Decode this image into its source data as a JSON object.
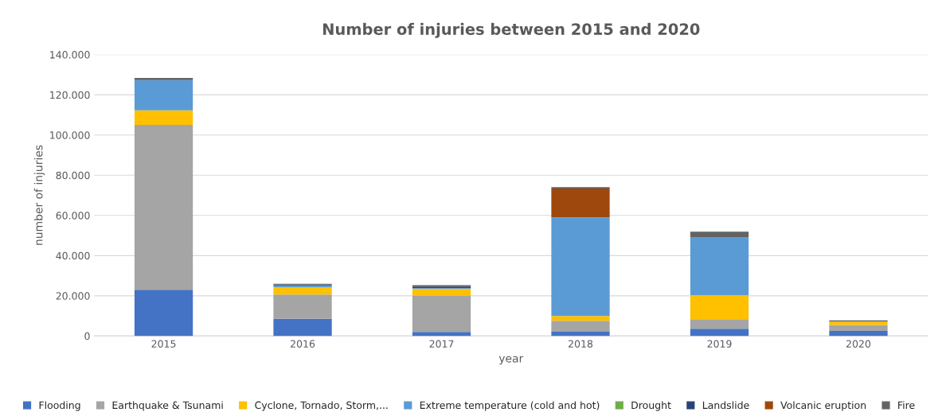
{
  "chart_data": {
    "type": "bar",
    "stacked": true,
    "title": "Number of injuries between 2015 and 2020",
    "xlabel": "year",
    "ylabel": "number of injuries",
    "categories": [
      "2015",
      "2016",
      "2017",
      "2018",
      "2019",
      "2020"
    ],
    "series": [
      {
        "name": "Flooding",
        "color": "#4472c4",
        "values": [
          23000,
          8600,
          2000,
          2100,
          3600,
          2500
        ]
      },
      {
        "name": "Earthquake & Tsunami",
        "color": "#a5a5a5",
        "values": [
          82000,
          12000,
          17900,
          5500,
          4800,
          3000
        ]
      },
      {
        "name": "Cyclone, Tornado, Storm,...",
        "color": "#ffc000",
        "values": [
          7300,
          3600,
          3500,
          2400,
          11900,
          1700
        ]
      },
      {
        "name": "Extreme temperature (cold and hot)",
        "color": "#5b9bd5",
        "values": [
          15000,
          1000,
          400,
          49000,
          28900,
          0
        ]
      },
      {
        "name": "Drought",
        "color": "#70ad47",
        "values": [
          0,
          0,
          0,
          0,
          0,
          0
        ]
      },
      {
        "name": "Landslide",
        "color": "#264478",
        "values": [
          0,
          400,
          800,
          0,
          0,
          0
        ]
      },
      {
        "name": "Volcanic eruption",
        "color": "#9e480e",
        "values": [
          0,
          0,
          0,
          14400,
          0,
          0
        ]
      },
      {
        "name": "Fire",
        "color": "#636363",
        "values": [
          1100,
          400,
          700,
          700,
          2700,
          600
        ]
      }
    ],
    "ylim": [
      0,
      140000
    ],
    "yticks": [
      {
        "value": 0,
        "label": "0"
      },
      {
        "value": 20000,
        "label": "20.000"
      },
      {
        "value": 40000,
        "label": "40.000"
      },
      {
        "value": 60000,
        "label": "60.000"
      },
      {
        "value": 80000,
        "label": "80.000"
      },
      {
        "value": 100000,
        "label": "100.000"
      },
      {
        "value": 120000,
        "label": "120.000"
      },
      {
        "value": 140000,
        "label": "140.000"
      }
    ],
    "grid": "y",
    "legend": "bottom"
  }
}
